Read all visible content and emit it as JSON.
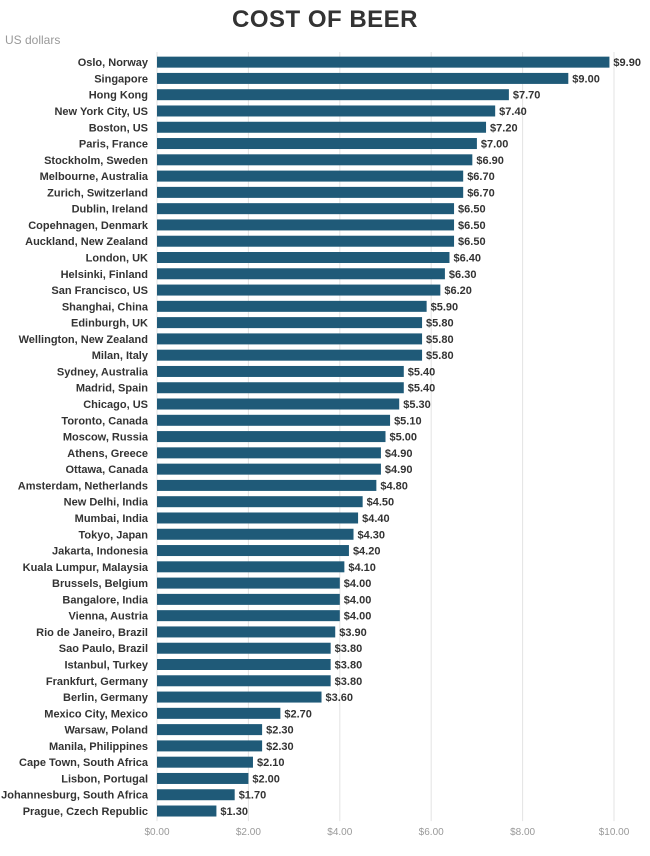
{
  "chart_data": {
    "type": "bar",
    "orientation": "horizontal",
    "title": "COST OF BEER",
    "unit_label": "US dollars",
    "xlim": [
      0,
      10
    ],
    "x_ticks": [
      "$0.00",
      "$2.00",
      "$4.00",
      "$6.00",
      "$8.00",
      "$10.00"
    ],
    "x_tick_values": [
      0,
      2,
      4,
      6,
      8,
      10
    ],
    "grid": true,
    "bar_color": "#1f5a78",
    "categories": [
      "Oslo, Norway",
      "Singapore",
      "Hong Kong",
      "New York City, US",
      "Boston, US",
      "Paris, France",
      "Stockholm, Sweden",
      "Melbourne, Australia",
      "Zurich, Switzerland",
      "Dublin, Ireland",
      "Copehnagen, Denmark",
      "Auckland, New Zealand",
      "London, UK",
      "Helsinki, Finland",
      "San Francisco, US",
      "Shanghai, China",
      "Edinburgh, UK",
      "Wellington, New Zealand",
      "Milan, Italy",
      "Sydney, Australia",
      "Madrid, Spain",
      "Chicago, US",
      "Toronto, Canada",
      "Moscow, Russia",
      "Athens, Greece",
      "Ottawa, Canada",
      "Amsterdam, Netherlands",
      "New Delhi, India",
      "Mumbai, India",
      "Tokyo, Japan",
      "Jakarta, Indonesia",
      "Kuala Lumpur, Malaysia",
      "Brussels, Belgium",
      "Bangalore, India",
      "Vienna, Austria",
      "Rio de Janeiro, Brazil",
      "Sao Paulo, Brazil",
      "Istanbul, Turkey",
      "Frankfurt, Germany",
      "Berlin, Germany",
      "Mexico City, Mexico",
      "Warsaw, Poland",
      "Manila, Philippines",
      "Cape Town, South Africa",
      "Lisbon, Portugal",
      "Johannesburg, South Africa",
      "Prague, Czech Republic"
    ],
    "values": [
      9.9,
      9.0,
      7.7,
      7.4,
      7.2,
      7.0,
      6.9,
      6.7,
      6.7,
      6.5,
      6.5,
      6.5,
      6.4,
      6.3,
      6.2,
      5.9,
      5.8,
      5.8,
      5.8,
      5.4,
      5.4,
      5.3,
      5.1,
      5.0,
      4.9,
      4.9,
      4.8,
      4.5,
      4.4,
      4.3,
      4.2,
      4.1,
      4.0,
      4.0,
      4.0,
      3.9,
      3.8,
      3.8,
      3.8,
      3.6,
      2.7,
      2.3,
      2.3,
      2.1,
      2.0,
      1.7,
      1.3
    ],
    "value_labels": [
      "$9.90",
      "$9.00",
      "$7.70",
      "$7.40",
      "$7.20",
      "$7.00",
      "$6.90",
      "$6.70",
      "$6.70",
      "$6.50",
      "$6.50",
      "$6.50",
      "$6.40",
      "$6.30",
      "$6.20",
      "$5.90",
      "$5.80",
      "$5.80",
      "$5.80",
      "$5.40",
      "$5.40",
      "$5.30",
      "$5.10",
      "$5.00",
      "$4.90",
      "$4.90",
      "$4.80",
      "$4.50",
      "$4.40",
      "$4.30",
      "$4.20",
      "$4.10",
      "$4.00",
      "$4.00",
      "$4.00",
      "$3.90",
      "$3.80",
      "$3.80",
      "$3.80",
      "$3.60",
      "$2.70",
      "$2.30",
      "$2.30",
      "$2.10",
      "$2.00",
      "$1.70",
      "$1.30"
    ]
  }
}
